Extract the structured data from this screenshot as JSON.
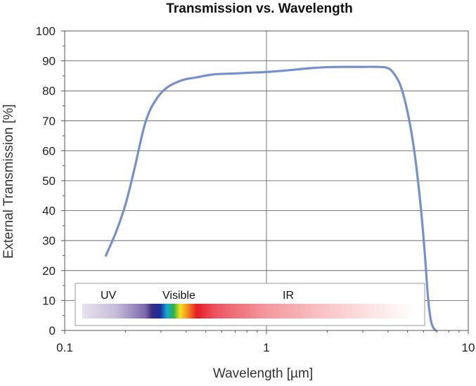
{
  "chart_data": {
    "type": "line",
    "title": "Transmission vs. Wavelength",
    "xlabel": "Wavelength [µm]",
    "ylabel": "External Transmission [%]",
    "x_scale": "log",
    "xlim": [
      0.1,
      10
    ],
    "ylim": [
      0,
      100
    ],
    "x_ticks": [
      {
        "value": 0.1,
        "label": "0.1"
      },
      {
        "value": 1,
        "label": "1"
      },
      {
        "value": 10,
        "label": "10"
      }
    ],
    "y_ticks": [
      0,
      10,
      20,
      30,
      40,
      50,
      60,
      70,
      80,
      90,
      100
    ],
    "grid": true,
    "series": [
      {
        "name": "External Transmission",
        "color": "#7590cc",
        "x": [
          0.16,
          0.18,
          0.2,
          0.22,
          0.25,
          0.28,
          0.32,
          0.38,
          0.45,
          0.55,
          0.7,
          0.85,
          1.0,
          1.3,
          1.6,
          2.0,
          2.5,
          3.0,
          3.5,
          3.9,
          4.2,
          4.6,
          5.0,
          5.4,
          5.8,
          6.1,
          6.3,
          6.5,
          6.7,
          6.9
        ],
        "values": [
          25,
          33,
          42,
          53,
          69,
          76.5,
          81,
          83.5,
          84.5,
          85.5,
          85.8,
          86.1,
          86.3,
          86.9,
          87.5,
          87.9,
          88.0,
          88.0,
          88.0,
          87.8,
          86.5,
          82.0,
          73.0,
          60.0,
          42.0,
          25.0,
          12.0,
          4.0,
          1.0,
          0
        ]
      }
    ],
    "spectrum_legend": {
      "labels": [
        "UV",
        "Visible",
        "IR"
      ]
    }
  }
}
